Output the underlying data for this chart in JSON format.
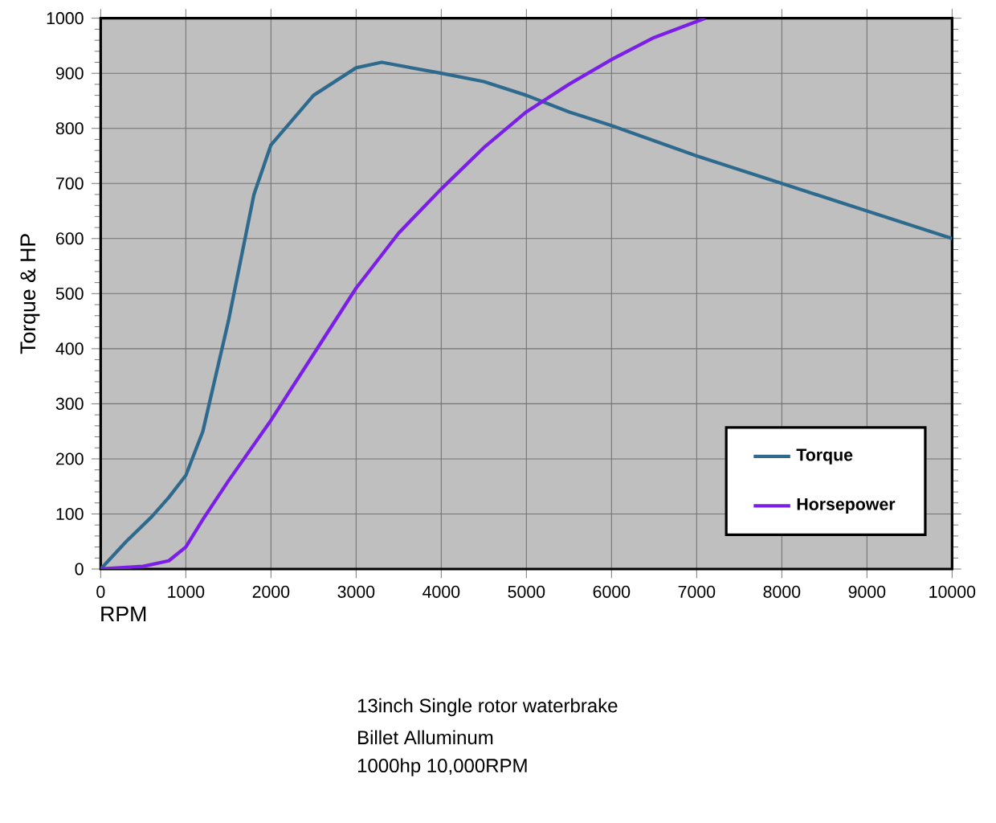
{
  "chart_data": {
    "type": "line",
    "xlabel": "RPM",
    "ylabel": "Torque & HP",
    "xlim": [
      0,
      10000
    ],
    "ylim": [
      0,
      1000
    ],
    "xticks": [
      0,
      1000,
      2000,
      3000,
      4000,
      5000,
      6000,
      7000,
      8000,
      9000,
      10000
    ],
    "yticks": [
      0,
      100,
      200,
      300,
      400,
      500,
      600,
      700,
      800,
      900,
      1000
    ],
    "grid": true,
    "legend": "bottom right",
    "marker": "none",
    "line_style": "solid",
    "series": [
      {
        "name": "Torque",
        "color": "#2e6a8e",
        "x": [
          0,
          300,
          600,
          800,
          1000,
          1200,
          1500,
          1800,
          2000,
          2500,
          3000,
          3300,
          4000,
          4500,
          5000,
          5500,
          6000,
          7000,
          8000,
          9000,
          10000
        ],
        "values": [
          0,
          50,
          95,
          130,
          170,
          250,
          450,
          680,
          770,
          860,
          910,
          920,
          900,
          885,
          860,
          830,
          805,
          750,
          700,
          650,
          600
        ]
      },
      {
        "name": "Horsepower",
        "color": "#7b1fe8",
        "x": [
          0,
          500,
          800,
          1000,
          1200,
          1500,
          2000,
          2500,
          3000,
          3500,
          4000,
          4500,
          5000,
          5500,
          6000,
          6500,
          7100
        ],
        "values": [
          0,
          5,
          15,
          40,
          90,
          160,
          270,
          390,
          510,
          610,
          690,
          765,
          830,
          880,
          925,
          965,
          1000
        ]
      }
    ],
    "annotations": [
      "13inch Single rotor waterbrake",
      "Billet Alluminum",
      "1000hp 10,000RPM"
    ]
  }
}
